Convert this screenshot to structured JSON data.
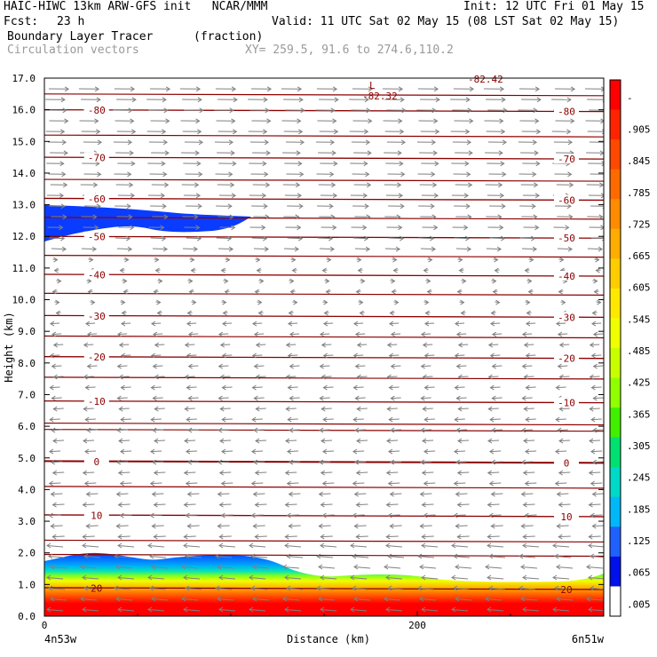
{
  "header": {
    "line1_left": "HAIC-HIWC 13km ARW-GFS init   NCAR/MMM",
    "line1_right": "Init: 12 UTC Fri 01 May 15",
    "fcst_label": "Fcst:",
    "fcst_value": "23 h",
    "valid": "Valid: 11 UTC Sat 02 May 15 (08 LST Sat 02 May 15)",
    "field_name": "Boundary Layer Tracer",
    "field_units": "(fraction)",
    "overlay_name": "Circulation vectors",
    "xy_text": "XY= 259.5, 91.6 to 274.6,110.2"
  },
  "chart_data": {
    "type": "heatmap",
    "ylabel": "Height (km)",
    "xlabel": "Distance (km)",
    "ylim": [
      0,
      17
    ],
    "xlim": [
      0,
      300
    ],
    "yticks": [
      "0.0",
      "1.0",
      "2.0",
      "3.0",
      "4.0",
      "5.0",
      "6.0",
      "7.0",
      "8.0",
      "9.0",
      "10.0",
      "11.0",
      "12.0",
      "13.0",
      "14.0",
      "15.0",
      "16.0",
      "17.0"
    ],
    "xtick_labels": [
      "0",
      "200"
    ],
    "x_endpoints": [
      "4n53w",
      "6n51w"
    ],
    "colorbar": {
      "labels": [
        "-",
        ".905",
        ".845",
        ".785",
        ".725",
        ".665",
        ".605",
        ".545",
        ".485",
        ".425",
        ".365",
        ".305",
        ".245",
        ".185",
        ".125",
        ".065",
        ".005"
      ],
      "colors": [
        "#ff0000",
        "#ff2400",
        "#ff4800",
        "#ff6a00",
        "#ff8c00",
        "#ffac00",
        "#ffcc00",
        "#ffe800",
        "#f0ff00",
        "#c8ff00",
        "#90ff00",
        "#40f000",
        "#00e070",
        "#00d8c8",
        "#00b8f8",
        "#2060ff",
        "#0010e8",
        "#ffffff"
      ]
    },
    "temperature_contours": [
      {
        "value": -80,
        "label": "-80",
        "height_km": 16.0
      },
      {
        "value": -70,
        "label": "-70",
        "height_km": 14.5
      },
      {
        "value": -60,
        "label": "-60",
        "height_km": 13.2
      },
      {
        "value": -50,
        "label": "-50",
        "height_km": 12.0
      },
      {
        "value": -40,
        "label": "-40",
        "height_km": 10.8
      },
      {
        "value": -30,
        "label": "-30",
        "height_km": 9.5
      },
      {
        "value": -20,
        "label": "-20",
        "height_km": 8.2
      },
      {
        "value": -10,
        "label": "-10",
        "height_km": 6.8
      },
      {
        "value": 0,
        "label": "0",
        "height_km": 4.9
      },
      {
        "value": 10,
        "label": "10",
        "height_km": 3.2
      },
      {
        "value": 20,
        "label": "20",
        "height_km": 0.9
      }
    ],
    "annotations": {
      "low_marker": "L",
      "low_value": "-82.32",
      "top_value": "-82.42"
    }
  },
  "colors": {
    "contour": "#8b0000",
    "vector": "#808080",
    "tracer_upper": "#0a3cff"
  }
}
